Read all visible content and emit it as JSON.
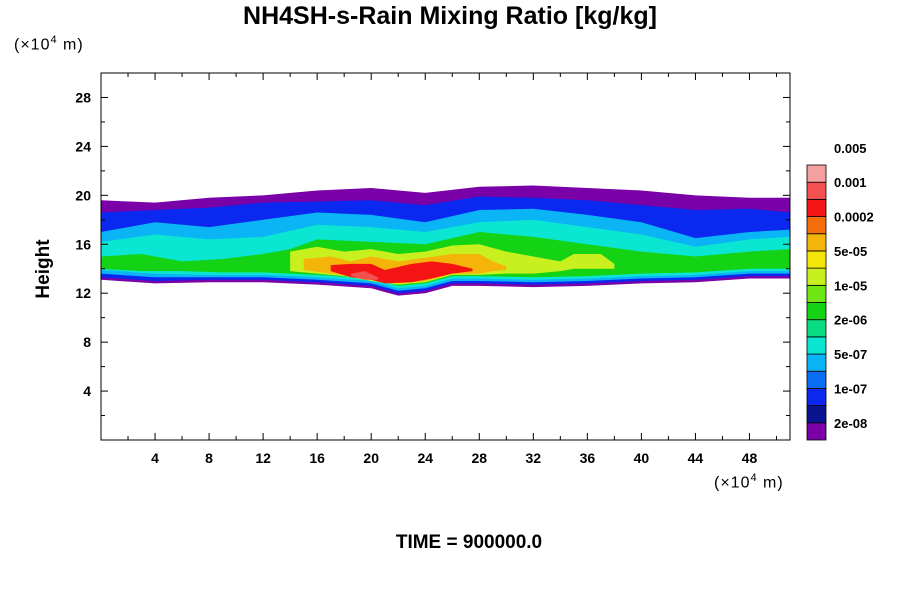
{
  "chart_data": {
    "type": "heatmap",
    "title": "NH4SH-s-Rain Mixing Ratio [kg/kg]",
    "ylabel": "Height",
    "x_unit": {
      "prefix": "(×10",
      "exp": "4",
      "suffix": " m)"
    },
    "y_unit": {
      "prefix": "(×10",
      "exp": "4",
      "suffix": " m)"
    },
    "xlim": [
      0,
      51
    ],
    "ylim": [
      0,
      30
    ],
    "x_ticks": [
      4,
      8,
      12,
      16,
      20,
      24,
      28,
      32,
      36,
      40,
      44,
      48
    ],
    "y_ticks": [
      4,
      8,
      12,
      16,
      20,
      24,
      28
    ],
    "footer": "TIME = 900000.0",
    "colorbar": {
      "colors": [
        "#7a00a8",
        "#0a1490",
        "#0a28f0",
        "#0a6ef5",
        "#0ab4f5",
        "#0ae6d2",
        "#0adc82",
        "#14d214",
        "#6ee614",
        "#c8f01e",
        "#f5e60a",
        "#f5b40a",
        "#f56e0a",
        "#f51414",
        "#f55050",
        "#f5a0a0"
      ],
      "labels": [
        "2e-08",
        "1e-07",
        "5e-07",
        "2e-06",
        "1e-05",
        "5e-05",
        "0.0002",
        "0.001",
        "0.005"
      ]
    },
    "field_layers": [
      {
        "level": 0,
        "top": [
          [
            0,
            19.6
          ],
          [
            4,
            19.4
          ],
          [
            8,
            19.8
          ],
          [
            12,
            20
          ],
          [
            16,
            20.4
          ],
          [
            20,
            20.6
          ],
          [
            24,
            20.2
          ],
          [
            28,
            20.7
          ],
          [
            32,
            20.8
          ],
          [
            36,
            20.6
          ],
          [
            40,
            20.4
          ],
          [
            44,
            20
          ],
          [
            48,
            19.8
          ],
          [
            51,
            19.8
          ]
        ],
        "bottom": [
          [
            0,
            13.1
          ],
          [
            4,
            12.8
          ],
          [
            8,
            12.9
          ],
          [
            12,
            12.9
          ],
          [
            16,
            12.7
          ],
          [
            20,
            12.4
          ],
          [
            22,
            11.8
          ],
          [
            24,
            12
          ],
          [
            26,
            12.6
          ],
          [
            28,
            12.6
          ],
          [
            32,
            12.5
          ],
          [
            36,
            12.6
          ],
          [
            40,
            12.8
          ],
          [
            44,
            12.9
          ],
          [
            48,
            13.2
          ],
          [
            51,
            13.2
          ]
        ]
      },
      {
        "level": 2,
        "top": [
          [
            0,
            18.6
          ],
          [
            4,
            18.8
          ],
          [
            8,
            19
          ],
          [
            12,
            19.4
          ],
          [
            16,
            19.5
          ],
          [
            20,
            19.6
          ],
          [
            24,
            19.2
          ],
          [
            28,
            19.9
          ],
          [
            32,
            19.8
          ],
          [
            36,
            19.6
          ],
          [
            40,
            19.2
          ],
          [
            44,
            18.8
          ],
          [
            48,
            18.9
          ],
          [
            51,
            18.6
          ]
        ],
        "bottom": [
          [
            0,
            13.3
          ],
          [
            4,
            13
          ],
          [
            8,
            13.1
          ],
          [
            12,
            13.1
          ],
          [
            16,
            12.9
          ],
          [
            20,
            12.6
          ],
          [
            22,
            12
          ],
          [
            24,
            12.2
          ],
          [
            26,
            12.8
          ],
          [
            28,
            12.8
          ],
          [
            32,
            12.7
          ],
          [
            36,
            12.8
          ],
          [
            40,
            13
          ],
          [
            44,
            13.1
          ],
          [
            48,
            13.4
          ],
          [
            51,
            13.4
          ]
        ]
      },
      {
        "level": 4,
        "top": [
          [
            0,
            17
          ],
          [
            4,
            17.8
          ],
          [
            8,
            17.4
          ],
          [
            12,
            18
          ],
          [
            16,
            18.6
          ],
          [
            20,
            18.4
          ],
          [
            24,
            17.8
          ],
          [
            28,
            18.8
          ],
          [
            32,
            18.9
          ],
          [
            36,
            18.4
          ],
          [
            40,
            17.8
          ],
          [
            44,
            16.5
          ],
          [
            48,
            17
          ],
          [
            51,
            17.2
          ]
        ],
        "bottom": [
          [
            0,
            13.6
          ],
          [
            4,
            13.3
          ],
          [
            8,
            13.3
          ],
          [
            12,
            13.3
          ],
          [
            16,
            13.1
          ],
          [
            20,
            12.8
          ],
          [
            22,
            12.2
          ],
          [
            24,
            12.4
          ],
          [
            26,
            13
          ],
          [
            28,
            13
          ],
          [
            32,
            12.9
          ],
          [
            36,
            13
          ],
          [
            40,
            13.2
          ],
          [
            44,
            13.3
          ],
          [
            48,
            13.6
          ],
          [
            51,
            13.6
          ]
        ]
      },
      {
        "level": 5,
        "top": [
          [
            0,
            16.2
          ],
          [
            4,
            16.8
          ],
          [
            8,
            16.4
          ],
          [
            12,
            16.6
          ],
          [
            16,
            17.6
          ],
          [
            20,
            17.4
          ],
          [
            24,
            17
          ],
          [
            28,
            17.8
          ],
          [
            32,
            18
          ],
          [
            36,
            17.4
          ],
          [
            40,
            16.8
          ],
          [
            44,
            15.8
          ],
          [
            48,
            16.4
          ],
          [
            51,
            16.6
          ]
        ],
        "bottom": [
          [
            0,
            13.9
          ],
          [
            4,
            13.6
          ],
          [
            8,
            13.5
          ],
          [
            12,
            13.5
          ],
          [
            16,
            13.3
          ],
          [
            20,
            13
          ],
          [
            22,
            12.4
          ],
          [
            24,
            12.6
          ],
          [
            26,
            13.2
          ],
          [
            28,
            13.2
          ],
          [
            32,
            13.1
          ],
          [
            36,
            13.2
          ],
          [
            40,
            13.4
          ],
          [
            44,
            13.5
          ],
          [
            48,
            13.8
          ],
          [
            51,
            13.8
          ]
        ]
      },
      {
        "level": 7,
        "top": [
          [
            0,
            15
          ],
          [
            3,
            15.2
          ],
          [
            6,
            14.6
          ],
          [
            9,
            14.8
          ],
          [
            12,
            15.2
          ],
          [
            14,
            15.6
          ],
          [
            16,
            16.4
          ],
          [
            20,
            16.2
          ],
          [
            24,
            16
          ],
          [
            28,
            17
          ],
          [
            32,
            16.6
          ],
          [
            36,
            16
          ],
          [
            40,
            15.4
          ],
          [
            44,
            15
          ],
          [
            48,
            15.4
          ],
          [
            51,
            15.6
          ]
        ],
        "bottom": [
          [
            0,
            14
          ],
          [
            3,
            13.8
          ],
          [
            6,
            13.8
          ],
          [
            9,
            13.7
          ],
          [
            12,
            13.7
          ],
          [
            14,
            13.6
          ],
          [
            16,
            13.5
          ],
          [
            20,
            13.2
          ],
          [
            22,
            12.6
          ],
          [
            24,
            12.8
          ],
          [
            26,
            13.4
          ],
          [
            28,
            13.4
          ],
          [
            32,
            13.3
          ],
          [
            36,
            13.4
          ],
          [
            40,
            13.6
          ],
          [
            44,
            13.7
          ],
          [
            48,
            14
          ],
          [
            51,
            14
          ]
        ]
      },
      {
        "level": 9,
        "top": [
          [
            14,
            15.4
          ],
          [
            16,
            15.8
          ],
          [
            18,
            15.4
          ],
          [
            20,
            15.6
          ],
          [
            22,
            15.2
          ],
          [
            24,
            15.4
          ],
          [
            26,
            15.9
          ],
          [
            28,
            16
          ],
          [
            30,
            15.4
          ],
          [
            32,
            15
          ],
          [
            34,
            14.6
          ],
          [
            35,
            15.2
          ],
          [
            37,
            15.2
          ],
          [
            38,
            14.4
          ]
        ],
        "bottom": [
          [
            14,
            13.8
          ],
          [
            16,
            13.6
          ],
          [
            18,
            13.4
          ],
          [
            20,
            13
          ],
          [
            22,
            12.7
          ],
          [
            24,
            12.9
          ],
          [
            26,
            13.5
          ],
          [
            28,
            13.5
          ],
          [
            30,
            13.6
          ],
          [
            32,
            13.6
          ],
          [
            34,
            13.8
          ],
          [
            35,
            14
          ],
          [
            37,
            14
          ],
          [
            38,
            14
          ]
        ]
      },
      {
        "level": 11,
        "top": [
          [
            15,
            14.8
          ],
          [
            17,
            15
          ],
          [
            18.5,
            14.6
          ],
          [
            20,
            15
          ],
          [
            22,
            14.6
          ],
          [
            24,
            14.9
          ],
          [
            26,
            15.2
          ],
          [
            28,
            15.2
          ],
          [
            29,
            14.6
          ],
          [
            30,
            14.2
          ]
        ],
        "bottom": [
          [
            15,
            13.9
          ],
          [
            17,
            13.6
          ],
          [
            18.5,
            13.4
          ],
          [
            20,
            13.1
          ],
          [
            22,
            12.8
          ],
          [
            24,
            13
          ],
          [
            26,
            13.6
          ],
          [
            28,
            13.6
          ],
          [
            29,
            13.8
          ],
          [
            30,
            13.9
          ]
        ]
      },
      {
        "level": 13,
        "top": [
          [
            17,
            14.3
          ],
          [
            18.5,
            14.4
          ],
          [
            20,
            14.4
          ],
          [
            21,
            13.9
          ],
          [
            23,
            14.4
          ],
          [
            24.5,
            14.6
          ],
          [
            26,
            14.4
          ],
          [
            27.5,
            14
          ]
        ],
        "bottom": [
          [
            17,
            13.8
          ],
          [
            18.5,
            13.3
          ],
          [
            20,
            13.1
          ],
          [
            21,
            12.8
          ],
          [
            23,
            12.9
          ],
          [
            24.5,
            13.2
          ],
          [
            26,
            13.6
          ],
          [
            27.5,
            13.8
          ]
        ]
      },
      {
        "level": 14,
        "top": [
          [
            18.5,
            13.6
          ],
          [
            19.5,
            13.8
          ],
          [
            20.5,
            13.3
          ]
        ],
        "bottom": [
          [
            18.5,
            13.4
          ],
          [
            19.5,
            13.1
          ],
          [
            20.5,
            13.1
          ]
        ]
      }
    ]
  }
}
